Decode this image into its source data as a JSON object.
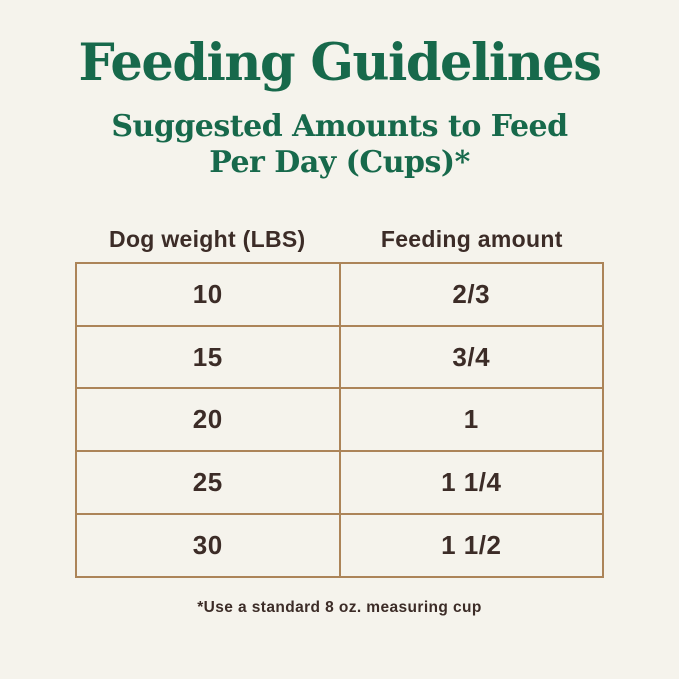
{
  "page": {
    "background_color": "#f5f3ec",
    "accent_green": "#17694b",
    "border_tan": "#ac8458",
    "text_dark": "#3c2c27",
    "title": "Feeding Guidelines",
    "subtitle_line1": "Suggested Amounts to Feed",
    "subtitle_line2": "Per Day (Cups)*",
    "footnote": "*Use a standard 8 oz. measuring cup"
  },
  "table": {
    "columns": [
      "Dog weight (LBS)",
      "Feeding amount"
    ],
    "rows": [
      {
        "weight": "10",
        "amount": "2/3"
      },
      {
        "weight": "15",
        "amount": "3/4"
      },
      {
        "weight": "20",
        "amount": "1"
      },
      {
        "weight": "25",
        "amount": "1 1/4"
      },
      {
        "weight": "30",
        "amount": "1 1/2"
      }
    ]
  },
  "chart_data": {
    "type": "table",
    "title": "Feeding Guidelines",
    "subtitle": "Suggested Amounts to Feed Per Day (Cups)*",
    "columns": [
      "Dog weight (LBS)",
      "Feeding amount"
    ],
    "rows": [
      [
        "10",
        "2/3"
      ],
      [
        "15",
        "3/4"
      ],
      [
        "20",
        "1"
      ],
      [
        "25",
        "1 1/4"
      ],
      [
        "30",
        "1 1/2"
      ]
    ],
    "footnote": "*Use a standard 8 oz. measuring cup",
    "notes": "Dog food feeding guide infographic; cream background, green serif headings, tan-bordered two-column table"
  }
}
